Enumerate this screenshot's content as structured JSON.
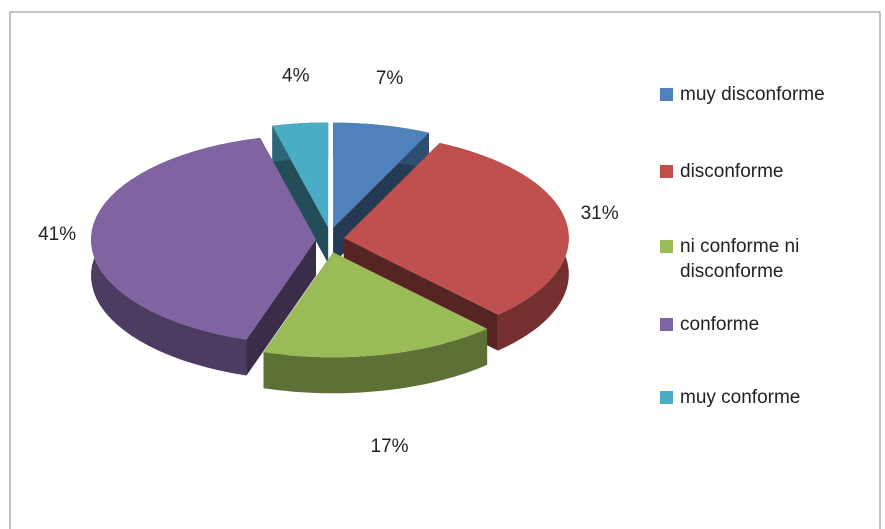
{
  "chart_data": {
    "type": "pie",
    "categories": [
      "muy disconforme",
      "disconforme",
      "ni conforme ni disconforme",
      "conforme",
      "muy conforme"
    ],
    "values": [
      7,
      31,
      17,
      41,
      4
    ],
    "value_labels": [
      "7%",
      "31%",
      "17%",
      "41%",
      "4%"
    ],
    "colors": [
      "#4f81bd",
      "#c0504d",
      "#9bbb59",
      "#8064a2",
      "#4bacc6"
    ],
    "legend": "right"
  }
}
